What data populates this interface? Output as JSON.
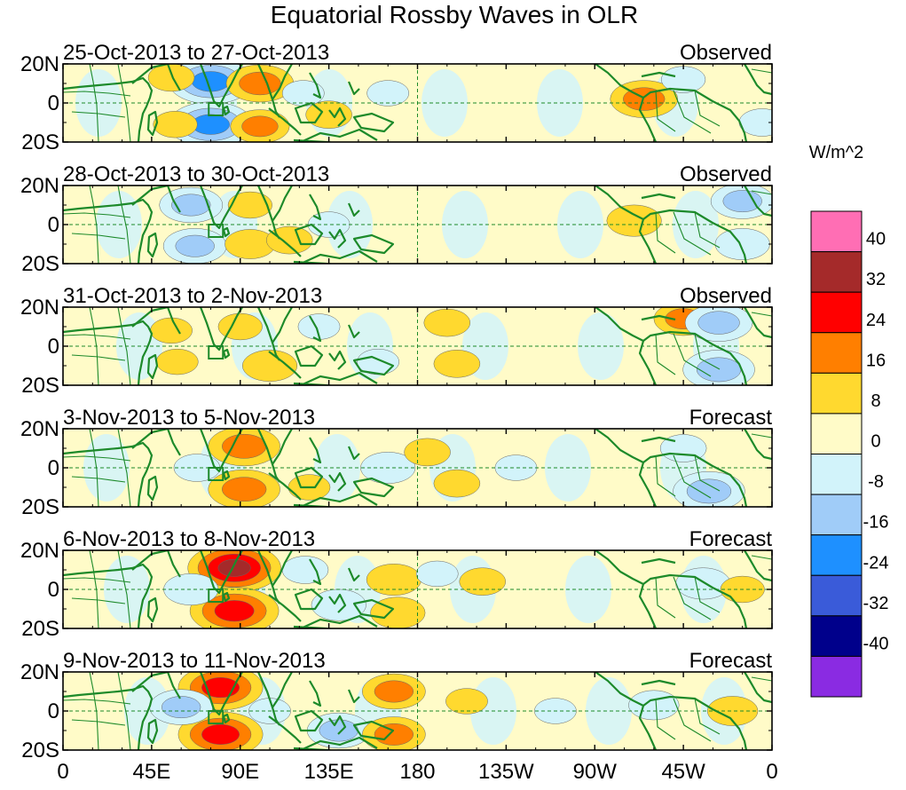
{
  "chart_data": {
    "type": "heatmap",
    "title": "Equatorial Rossby Waves in OLR",
    "units": "W/m^2",
    "x_tick_labels": [
      "0",
      "45E",
      "90E",
      "135E",
      "180",
      "135W",
      "90W",
      "45W",
      "0"
    ],
    "x_tick_values_deg_east": [
      0,
      45,
      90,
      135,
      180,
      225,
      270,
      315,
      360
    ],
    "y_tick_labels": [
      "20N",
      "0",
      "20S"
    ],
    "y_tick_values_deg": [
      20,
      0,
      -20
    ],
    "xlim": [
      0,
      360
    ],
    "ylim": [
      -20,
      20
    ],
    "colorbar": {
      "labels": [
        "40",
        "32",
        "24",
        "16",
        "8",
        "0",
        "-8",
        "-16",
        "-24",
        "-32",
        "-40"
      ],
      "colors": [
        "#ff6eb4",
        "#a52a2a",
        "#ff0000",
        "#ff7f00",
        "#ffd92f",
        "#fffbc8",
        "#d2f3fa",
        "#a0ccf8",
        "#1e90ff",
        "#3a5bd9",
        "#00008b",
        "#8a2be2"
      ]
    },
    "panels": [
      {
        "date_range": "25-Oct-2013 to 27-Oct-2013",
        "status": "Observed",
        "features": [
          {
            "lon": 75,
            "lat": 11,
            "value": -28
          },
          {
            "lon": 75,
            "lat": -11,
            "value": -28
          },
          {
            "lon": 100,
            "lat": 10,
            "value": 20
          },
          {
            "lon": 100,
            "lat": -12,
            "value": 16
          },
          {
            "lon": 55,
            "lat": 13,
            "value": 10
          },
          {
            "lon": 57,
            "lat": -11,
            "value": 9
          },
          {
            "lon": 135,
            "lat": -6,
            "value": 10
          },
          {
            "lon": 122,
            "lat": 5,
            "value": -8
          },
          {
            "lon": 165,
            "lat": 5,
            "value": -8
          },
          {
            "lon": 180,
            "lat": 0,
            "value": 4
          },
          {
            "lon": 295,
            "lat": 2,
            "value": 20
          },
          {
            "lon": 315,
            "lat": 12,
            "value": -9
          },
          {
            "lon": 355,
            "lat": -10,
            "value": -10
          }
        ]
      },
      {
        "date_range": "28-Oct-2013 to 30-Oct-2013",
        "status": "Observed",
        "features": [
          {
            "lon": 65,
            "lat": 10,
            "value": -18
          },
          {
            "lon": 67,
            "lat": -11,
            "value": -18
          },
          {
            "lon": 95,
            "lat": 10,
            "value": 9
          },
          {
            "lon": 95,
            "lat": -10,
            "value": 12
          },
          {
            "lon": 115,
            "lat": -8,
            "value": 10
          },
          {
            "lon": 135,
            "lat": 0,
            "value": -8
          },
          {
            "lon": 170,
            "lat": 0,
            "value": -6
          },
          {
            "lon": 205,
            "lat": 3,
            "value": 5
          },
          {
            "lon": 290,
            "lat": 2,
            "value": 14
          },
          {
            "lon": 345,
            "lat": 12,
            "value": -18
          },
          {
            "lon": 345,
            "lat": -10,
            "value": -14
          },
          {
            "lon": 30,
            "lat": 0,
            "value": 5
          }
        ]
      },
      {
        "date_range": "31-Oct-2013 to 2-Nov-2013",
        "status": "Observed",
        "features": [
          {
            "lon": 55,
            "lat": 8,
            "value": 8
          },
          {
            "lon": 58,
            "lat": -8,
            "value": 8
          },
          {
            "lon": 90,
            "lat": 10,
            "value": 9
          },
          {
            "lon": 105,
            "lat": -10,
            "value": 14
          },
          {
            "lon": 130,
            "lat": 10,
            "value": -8
          },
          {
            "lon": 160,
            "lat": -8,
            "value": -8
          },
          {
            "lon": 195,
            "lat": 12,
            "value": 10
          },
          {
            "lon": 200,
            "lat": -9,
            "value": 10
          },
          {
            "lon": 225,
            "lat": 0,
            "value": 7
          },
          {
            "lon": 315,
            "lat": 14,
            "value": 16
          },
          {
            "lon": 333,
            "lat": 12,
            "value": -20
          },
          {
            "lon": 333,
            "lat": -12,
            "value": -22
          },
          {
            "lon": 285,
            "lat": 4,
            "value": 7
          }
        ]
      },
      {
        "date_range": "3-Nov-2013 to 5-Nov-2013",
        "status": "Forecast",
        "features": [
          {
            "lon": 92,
            "lat": 11,
            "value": 22
          },
          {
            "lon": 92,
            "lat": -11,
            "value": 22
          },
          {
            "lon": 68,
            "lat": 0,
            "value": -10
          },
          {
            "lon": 45,
            "lat": 8,
            "value": 6
          },
          {
            "lon": 125,
            "lat": -10,
            "value": 8
          },
          {
            "lon": 165,
            "lat": 0,
            "value": -14
          },
          {
            "lon": 185,
            "lat": 8,
            "value": 10
          },
          {
            "lon": 200,
            "lat": -8,
            "value": 10
          },
          {
            "lon": 230,
            "lat": 0,
            "value": -8
          },
          {
            "lon": 315,
            "lat": 10,
            "value": -10
          },
          {
            "lon": 328,
            "lat": -12,
            "value": -22
          },
          {
            "lon": 340,
            "lat": 2,
            "value": 7
          }
        ]
      },
      {
        "date_range": "6-Nov-2013 to 8-Nov-2013",
        "status": "Forecast",
        "features": [
          {
            "lon": 87,
            "lat": 11,
            "value": 32
          },
          {
            "lon": 87,
            "lat": -11,
            "value": 30
          },
          {
            "lon": 65,
            "lat": 0,
            "value": -14
          },
          {
            "lon": 52,
            "lat": 8,
            "value": 6
          },
          {
            "lon": 123,
            "lat": 10,
            "value": -10
          },
          {
            "lon": 140,
            "lat": -8,
            "value": -14
          },
          {
            "lon": 168,
            "lat": 5,
            "value": 14
          },
          {
            "lon": 170,
            "lat": -12,
            "value": 14
          },
          {
            "lon": 190,
            "lat": 8,
            "value": -8
          },
          {
            "lon": 213,
            "lat": 4,
            "value": 10
          },
          {
            "lon": 325,
            "lat": 3,
            "value": -14
          },
          {
            "lon": 345,
            "lat": 0,
            "value": 9
          }
        ]
      },
      {
        "date_range": "9-Nov-2013 to 11-Nov-2013",
        "status": "Forecast",
        "features": [
          {
            "lon": 80,
            "lat": 12,
            "value": 28
          },
          {
            "lon": 80,
            "lat": -12,
            "value": 28
          },
          {
            "lon": 60,
            "lat": 2,
            "value": -18
          },
          {
            "lon": 105,
            "lat": 0,
            "value": -8
          },
          {
            "lon": 140,
            "lat": -10,
            "value": -18
          },
          {
            "lon": 150,
            "lat": 10,
            "value": 6
          },
          {
            "lon": 168,
            "lat": 10,
            "value": 18
          },
          {
            "lon": 168,
            "lat": -12,
            "value": 18
          },
          {
            "lon": 205,
            "lat": 5,
            "value": 8
          },
          {
            "lon": 250,
            "lat": 0,
            "value": -8
          },
          {
            "lon": 300,
            "lat": 3,
            "value": -12
          },
          {
            "lon": 340,
            "lat": 0,
            "value": 12
          }
        ]
      }
    ]
  }
}
